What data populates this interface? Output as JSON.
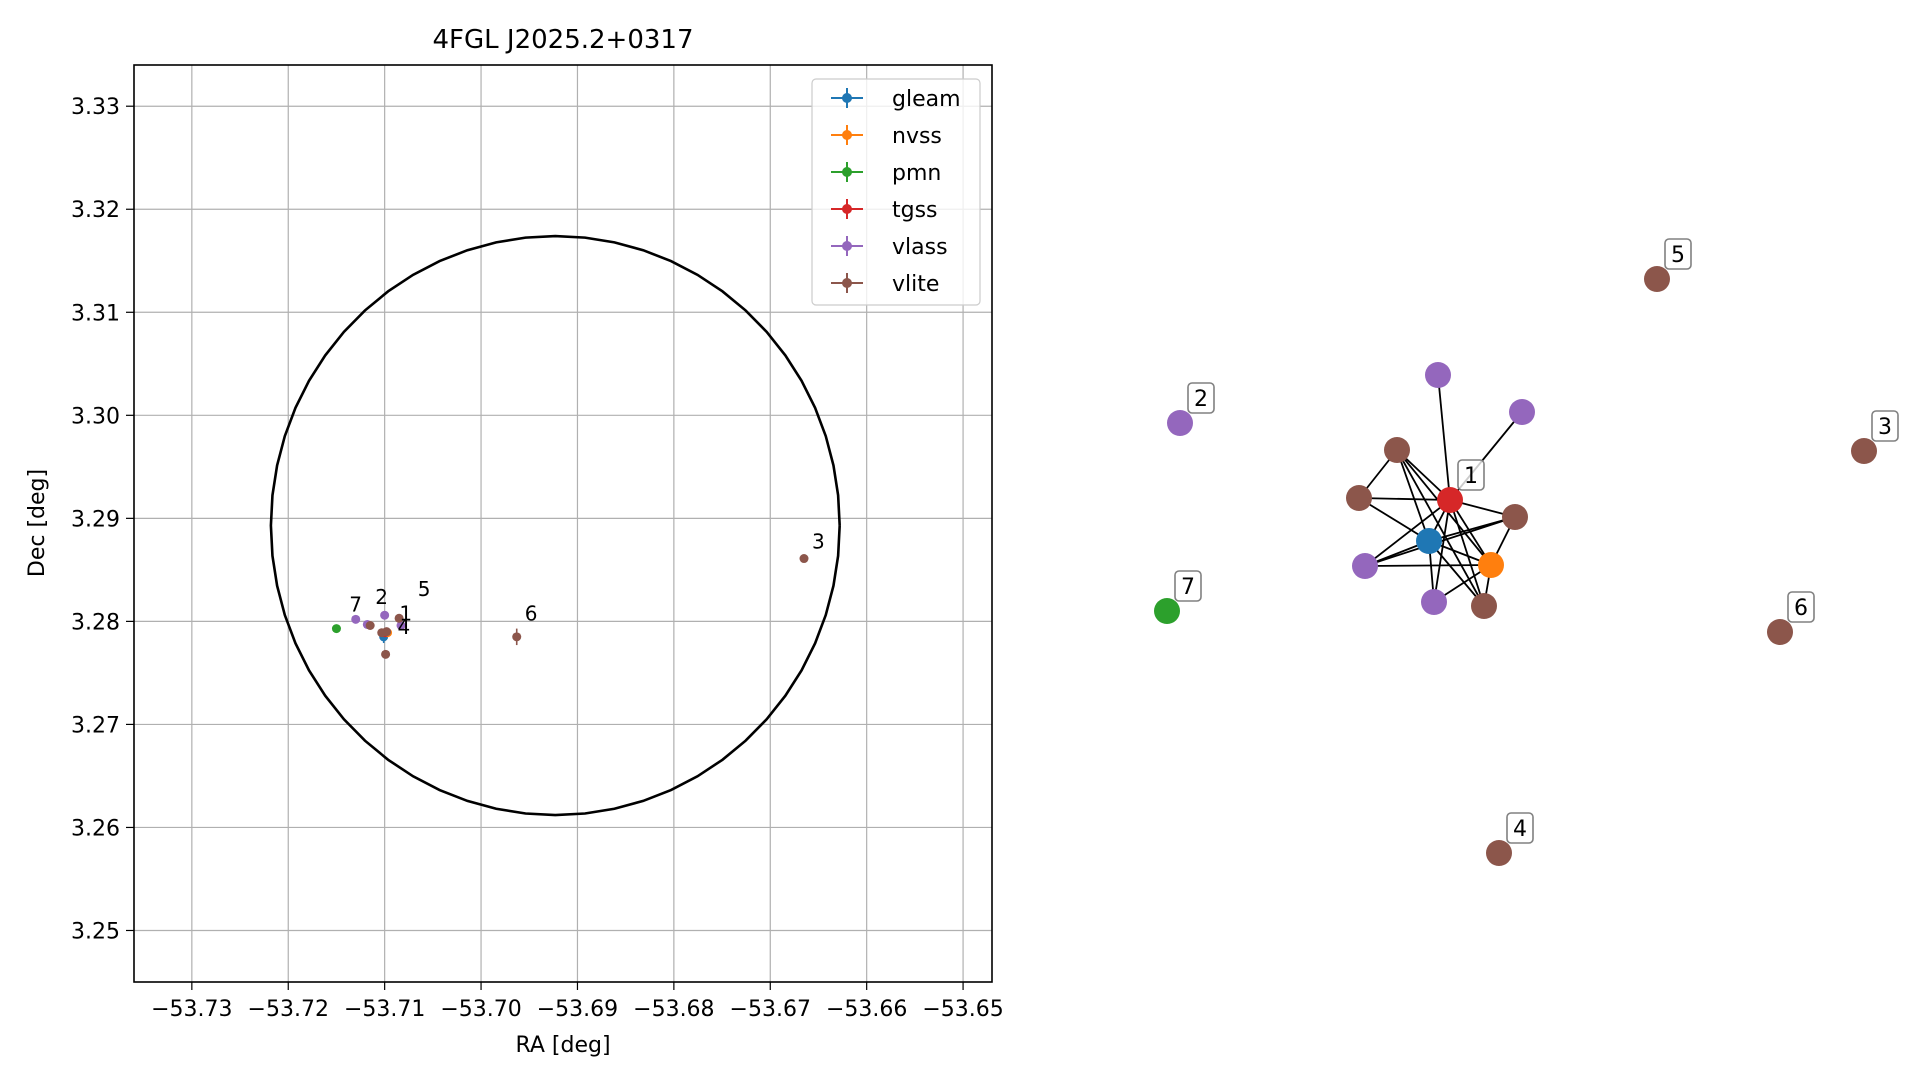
{
  "chart_data": [
    {
      "type": "scatter",
      "title": "4FGL J2025.2+0317",
      "xlabel": "RA [deg]",
      "ylabel": "Dec [deg]",
      "xlim": [
        -53.736,
        -53.647
      ],
      "ylim": [
        3.245,
        3.334
      ],
      "x_ticks": [
        -53.73,
        -53.72,
        -53.71,
        -53.7,
        -53.69,
        -53.68,
        -53.67,
        -53.66,
        -53.65
      ],
      "x_tick_labels": [
        "−53.73",
        "−53.72",
        "−53.71",
        "−53.70",
        "−53.69",
        "−53.68",
        "−53.67",
        "−53.66",
        "−53.65"
      ],
      "y_ticks": [
        3.25,
        3.26,
        3.27,
        3.28,
        3.29,
        3.3,
        3.31,
        3.32,
        3.33
      ],
      "y_tick_labels": [
        "3.25",
        "3.26",
        "3.27",
        "3.28",
        "3.29",
        "3.30",
        "3.31",
        "3.32",
        "3.33"
      ],
      "grid": true,
      "legend": "top-right",
      "ellipse": {
        "ra_center": -53.6923,
        "dec_center": 3.2893,
        "ra_radius": 0.0295,
        "dec_radius": 0.0281,
        "color": "#000000"
      },
      "series": [
        {
          "name": "gleam",
          "color": "#1f77b4",
          "points": [
            {
              "ra": -53.7101,
              "dec": 3.2785,
              "ra_err": 0.0001,
              "dec_err": 0.0006
            }
          ]
        },
        {
          "name": "nvss",
          "color": "#ff7f0e",
          "points": [
            {
              "ra": -53.7097,
              "dec": 3.2789,
              "ra_err": 0.0001,
              "dec_err": 0.0002
            }
          ]
        },
        {
          "name": "pmn",
          "color": "#2ca02c",
          "points": [
            {
              "ra": -53.715,
              "dec": 3.2793,
              "ra_err": 0.0001,
              "dec_err": 0.0002
            }
          ]
        },
        {
          "name": "tgss",
          "color": "#d62728",
          "points": [
            {
              "ra": -53.71,
              "dec": 3.2789,
              "ra_err": 0.0001,
              "dec_err": 0.0002
            }
          ]
        },
        {
          "name": "vlass",
          "color": "#9467bd",
          "points": [
            {
              "ra": -53.71,
              "dec": 3.2806,
              "ra_err": 0.0001,
              "dec_err": 0.0002
            },
            {
              "ra": -53.7083,
              "dec": 3.2796,
              "ra_err": 0.0001,
              "dec_err": 0.0002
            },
            {
              "ra": -53.713,
              "dec": 3.2802,
              "ra_err": 0.0001,
              "dec_err": 0.0002
            },
            {
              "ra": -53.7118,
              "dec": 3.2797,
              "ra_err": 0.0001,
              "dec_err": 0.0002
            }
          ]
        },
        {
          "name": "vlite",
          "color": "#8c564b",
          "points": [
            {
              "ra": -53.7085,
              "dec": 3.2803,
              "ra_err": 0.0001,
              "dec_err": 0.0003
            },
            {
              "ra": -53.7115,
              "dec": 3.2796,
              "ra_err": 0.0001,
              "dec_err": 0.0002
            },
            {
              "ra": -53.7103,
              "dec": 3.2789,
              "ra_err": 0.0001,
              "dec_err": 0.0002
            },
            {
              "ra": -53.7098,
              "dec": 3.279,
              "ra_err": 0.0001,
              "dec_err": 0.0002
            },
            {
              "ra": -53.7099,
              "dec": 3.2768,
              "ra_err": 0.0001,
              "dec_err": 0.0002
            },
            {
              "ra": -53.6963,
              "dec": 3.2785,
              "ra_err": 0.0001,
              "dec_err": 0.0008
            },
            {
              "ra": -53.6665,
              "dec": 3.2861,
              "ra_err": 0.0001,
              "dec_err": 0.0002
            }
          ]
        }
      ],
      "annotations": [
        {
          "text": "1",
          "ra": -53.7093,
          "dec": 3.2791
        },
        {
          "text": "2",
          "ra": -53.7118,
          "dec": 3.2807
        },
        {
          "text": "3",
          "ra": -53.6665,
          "dec": 3.2861
        },
        {
          "text": "4",
          "ra": -53.7095,
          "dec": 3.2778
        },
        {
          "text": "5",
          "ra": -53.7074,
          "dec": 3.2815
        },
        {
          "text": "6",
          "ra": -53.6963,
          "dec": 3.2791
        },
        {
          "text": "7",
          "ra": -53.7145,
          "dec": 3.28
        }
      ]
    },
    {
      "type": "network",
      "nodes": [
        {
          "id": "a",
          "color": "#d62728",
          "label": "1"
        },
        {
          "id": "b",
          "color": "#1f77b4",
          "label": ""
        },
        {
          "id": "c",
          "color": "#ff7f0e",
          "label": ""
        },
        {
          "id": "d",
          "color": "#9467bd",
          "label": ""
        },
        {
          "id": "e",
          "color": "#9467bd",
          "label": ""
        },
        {
          "id": "f",
          "color": "#8c564b",
          "label": ""
        },
        {
          "id": "g",
          "color": "#8c564b",
          "label": ""
        },
        {
          "id": "h",
          "color": "#8c564b",
          "label": ""
        },
        {
          "id": "i",
          "color": "#9467bd",
          "label": ""
        },
        {
          "id": "j",
          "color": "#9467bd",
          "label": ""
        },
        {
          "id": "k",
          "color": "#8c564b",
          "label": ""
        },
        {
          "id": "n2",
          "color": "#9467bd",
          "label": "2"
        },
        {
          "id": "n3",
          "color": "#8c564b",
          "label": "3"
        },
        {
          "id": "n4",
          "color": "#8c564b",
          "label": "4"
        },
        {
          "id": "n5",
          "color": "#8c564b",
          "label": "5"
        },
        {
          "id": "n6",
          "color": "#8c564b",
          "label": "6"
        },
        {
          "id": "n7",
          "color": "#2ca02c",
          "label": "7"
        }
      ],
      "edges": [
        [
          "a",
          "b"
        ],
        [
          "a",
          "c"
        ],
        [
          "a",
          "d"
        ],
        [
          "a",
          "e"
        ],
        [
          "a",
          "f"
        ],
        [
          "a",
          "g"
        ],
        [
          "a",
          "h"
        ],
        [
          "a",
          "i"
        ],
        [
          "a",
          "j"
        ],
        [
          "a",
          "k"
        ],
        [
          "b",
          "c"
        ],
        [
          "b",
          "g"
        ],
        [
          "b",
          "h"
        ],
        [
          "b",
          "i"
        ],
        [
          "b",
          "j"
        ],
        [
          "b",
          "k"
        ],
        [
          "b",
          "f"
        ],
        [
          "c",
          "h"
        ],
        [
          "c",
          "i"
        ],
        [
          "c",
          "j"
        ],
        [
          "c",
          "f"
        ],
        [
          "c",
          "k"
        ],
        [
          "i",
          "h"
        ],
        [
          "f",
          "k"
        ],
        [
          "g",
          "f"
        ]
      ]
    }
  ]
}
